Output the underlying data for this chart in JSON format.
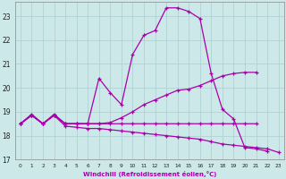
{
  "xlabel": "Windchill (Refroidissement éolien,°C)",
  "bg_color": "#cce8e8",
  "line_color": "#aa00aa",
  "xlim": [
    -0.5,
    23.5
  ],
  "ylim": [
    17.0,
    23.6
  ],
  "yticks": [
    17,
    18,
    19,
    20,
    21,
    22,
    23
  ],
  "xticks": [
    0,
    1,
    2,
    3,
    4,
    5,
    6,
    7,
    8,
    9,
    10,
    11,
    12,
    13,
    14,
    15,
    16,
    17,
    18,
    19,
    20,
    21,
    22,
    23
  ],
  "series": [
    {
      "x": [
        0,
        1,
        2,
        3,
        4,
        5,
        6,
        7,
        8,
        9,
        10,
        11,
        12,
        13,
        14,
        15,
        16,
        17,
        18,
        19,
        20,
        21,
        22,
        23
      ],
      "y": [
        18.5,
        18.9,
        18.5,
        18.9,
        18.5,
        18.5,
        18.5,
        20.4,
        19.8,
        19.3,
        21.4,
        22.2,
        22.4,
        23.35,
        23.35,
        23.2,
        22.9,
        20.6,
        19.1,
        18.7,
        17.5,
        17.45,
        17.35,
        null
      ]
    },
    {
      "x": [
        0,
        1,
        2,
        3,
        4,
        5,
        6,
        7,
        8,
        9,
        10,
        11,
        12,
        13,
        14,
        15,
        16,
        17,
        18,
        19,
        20,
        21,
        22,
        23
      ],
      "y": [
        18.5,
        18.85,
        18.5,
        18.85,
        18.5,
        18.5,
        18.5,
        18.5,
        18.55,
        18.75,
        19.0,
        19.3,
        19.5,
        19.7,
        19.9,
        19.95,
        20.1,
        20.3,
        20.5,
        20.6,
        20.65,
        20.65,
        null,
        null
      ]
    },
    {
      "x": [
        0,
        1,
        2,
        3,
        4,
        5,
        6,
        7,
        8,
        9,
        10,
        11,
        12,
        13,
        14,
        15,
        16,
        17,
        18,
        19,
        20,
        21,
        22,
        23
      ],
      "y": [
        18.5,
        18.85,
        18.5,
        18.85,
        18.5,
        18.5,
        18.5,
        18.5,
        18.5,
        18.5,
        18.5,
        18.5,
        18.5,
        18.5,
        18.5,
        18.5,
        18.5,
        18.5,
        18.5,
        18.5,
        18.5,
        18.5,
        null,
        null
      ]
    },
    {
      "x": [
        0,
        1,
        2,
        3,
        4,
        5,
        6,
        7,
        8,
        9,
        10,
        11,
        12,
        13,
        14,
        15,
        16,
        17,
        18,
        19,
        20,
        21,
        22,
        23
      ],
      "y": [
        18.5,
        18.85,
        18.5,
        18.85,
        18.4,
        18.35,
        18.3,
        18.3,
        18.25,
        18.2,
        18.15,
        18.1,
        18.05,
        18.0,
        17.95,
        17.9,
        17.85,
        17.75,
        17.65,
        17.6,
        17.55,
        17.5,
        17.45,
        17.3
      ]
    }
  ]
}
